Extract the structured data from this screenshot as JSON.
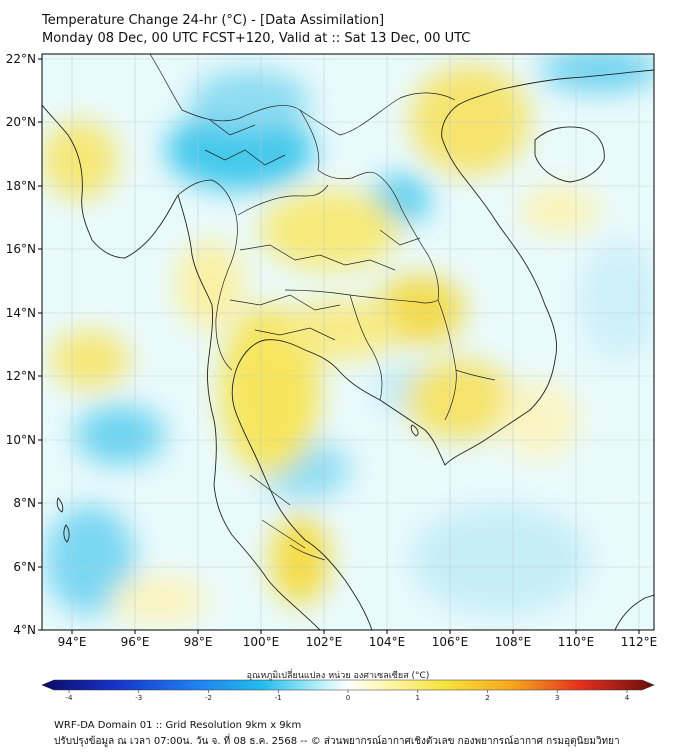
{
  "title_line1": "Temperature Change 24-hr (°C) - [Data Assimilation]",
  "title_line2": "Monday 08 Dec, 00 UTC FCST+120, Valid at :: Sat 13 Dec, 00 UTC",
  "lat_labels": [
    "22°N",
    "20°N",
    "18°N",
    "16°N",
    "14°N",
    "12°N",
    "10°N",
    "8°N",
    "6°N",
    "4°N"
  ],
  "lon_labels": [
    "94°E",
    "96°E",
    "98°E",
    "100°E",
    "102°E",
    "104°E",
    "106°E",
    "108°E",
    "110°E",
    "112°E"
  ],
  "colorbar": {
    "label": "อุณหภูมิเปลี่ยนแปลง หน่วย องศาเซลเซียส (°C)",
    "ticks": [
      "-4",
      "-3",
      "-2",
      "-1",
      "0",
      "1",
      "2",
      "3",
      "4"
    ],
    "min": -4,
    "max": 4,
    "colors": [
      "#0a0a6a",
      "#1633c8",
      "#1f7ff0",
      "#22bdee",
      "#bff3fb",
      "#ffffff",
      "#fff7b0",
      "#f5e23a",
      "#f7a51c",
      "#e5301e",
      "#6b0d0d"
    ]
  },
  "footer_line1": "WRF-DA Domain 01 :: Grid Resolution 9km x 9km",
  "footer_line2": "ปรับปรุงข้อมูล ณ เวลา 07:00น. วัน จ. ที่ 08 ธ.ค. 2568 -- © ส่วนพยากรณ์อากาศเชิงตัวเลข กองพยากรณ์อากาศ กรมอุตุนิยมวิทยา"
}
